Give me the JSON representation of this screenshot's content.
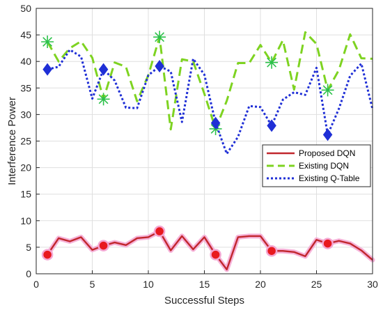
{
  "chart_data": {
    "type": "line",
    "xlabel": "Successful Steps",
    "ylabel": "Interference Power",
    "xlim": [
      0,
      30
    ],
    "ylim": [
      0,
      50
    ],
    "x_ticks": [
      0,
      5,
      10,
      15,
      20,
      25,
      30
    ],
    "y_ticks": [
      0,
      5,
      10,
      15,
      20,
      25,
      30,
      35,
      40,
      45,
      50
    ],
    "grid": true,
    "legend_position": "middle-right",
    "series": [
      {
        "name": "Proposed DQN",
        "color": "#c1272d",
        "halo_color": "#f4a6d2",
        "line_style": "solid",
        "marker": "circle",
        "marker_color": "#e8191e",
        "marker_every": 5,
        "x": [
          1,
          2,
          3,
          4,
          5,
          6,
          7,
          8,
          9,
          10,
          11,
          12,
          13,
          14,
          15,
          16,
          17,
          18,
          19,
          20,
          21,
          22,
          23,
          24,
          25,
          26,
          27,
          28,
          29,
          30
        ],
        "values": [
          3.6,
          6.7,
          6.1,
          6.9,
          4.5,
          5.3,
          5.9,
          5.4,
          6.7,
          6.9,
          8.0,
          4.4,
          7.1,
          4.6,
          6.9,
          3.6,
          0.8,
          6.9,
          7.1,
          7.1,
          4.3,
          4.3,
          4.1,
          3.3,
          6.4,
          5.7,
          6.2,
          5.7,
          4.4,
          2.6
        ]
      },
      {
        "name": "Existing DQN",
        "color": "#7ed321",
        "line_style": "dashed",
        "marker": "asterisk",
        "marker_color": "#2cc14a",
        "marker_every": 5,
        "x": [
          1,
          2,
          3,
          4,
          5,
          6,
          7,
          8,
          9,
          10,
          11,
          12,
          13,
          14,
          15,
          16,
          17,
          18,
          19,
          20,
          21,
          22,
          23,
          24,
          25,
          26,
          27,
          28,
          29,
          30
        ],
        "values": [
          43.7,
          40.0,
          42.5,
          43.8,
          40.7,
          32.9,
          39.8,
          39.0,
          32.5,
          37.4,
          44.6,
          27.2,
          40.4,
          40.0,
          33.9,
          27.3,
          32.6,
          39.7,
          39.7,
          43.1,
          39.8,
          44.0,
          34.7,
          45.5,
          43.3,
          34.6,
          38.4,
          45.1,
          40.6,
          40.5
        ]
      },
      {
        "name": "Existing Q-Table",
        "color": "#1f2fd6",
        "line_style": "dotted",
        "marker": "diamond",
        "marker_color": "#1f2fd6",
        "marker_every": 5,
        "x": [
          1,
          2,
          3,
          4,
          5,
          6,
          7,
          8,
          9,
          10,
          11,
          12,
          13,
          14,
          15,
          16,
          17,
          18,
          19,
          20,
          21,
          22,
          23,
          24,
          25,
          26,
          27,
          28,
          29,
          30
        ],
        "values": [
          38.5,
          39.0,
          42.2,
          40.9,
          33.0,
          38.5,
          36.4,
          31.3,
          31.2,
          37.4,
          39.1,
          38.1,
          28.6,
          40.5,
          37.5,
          28.4,
          22.6,
          25.8,
          31.6,
          31.4,
          27.9,
          32.8,
          34.2,
          33.7,
          38.8,
          26.2,
          31.1,
          37.3,
          39.6,
          31.0
        ]
      }
    ]
  }
}
